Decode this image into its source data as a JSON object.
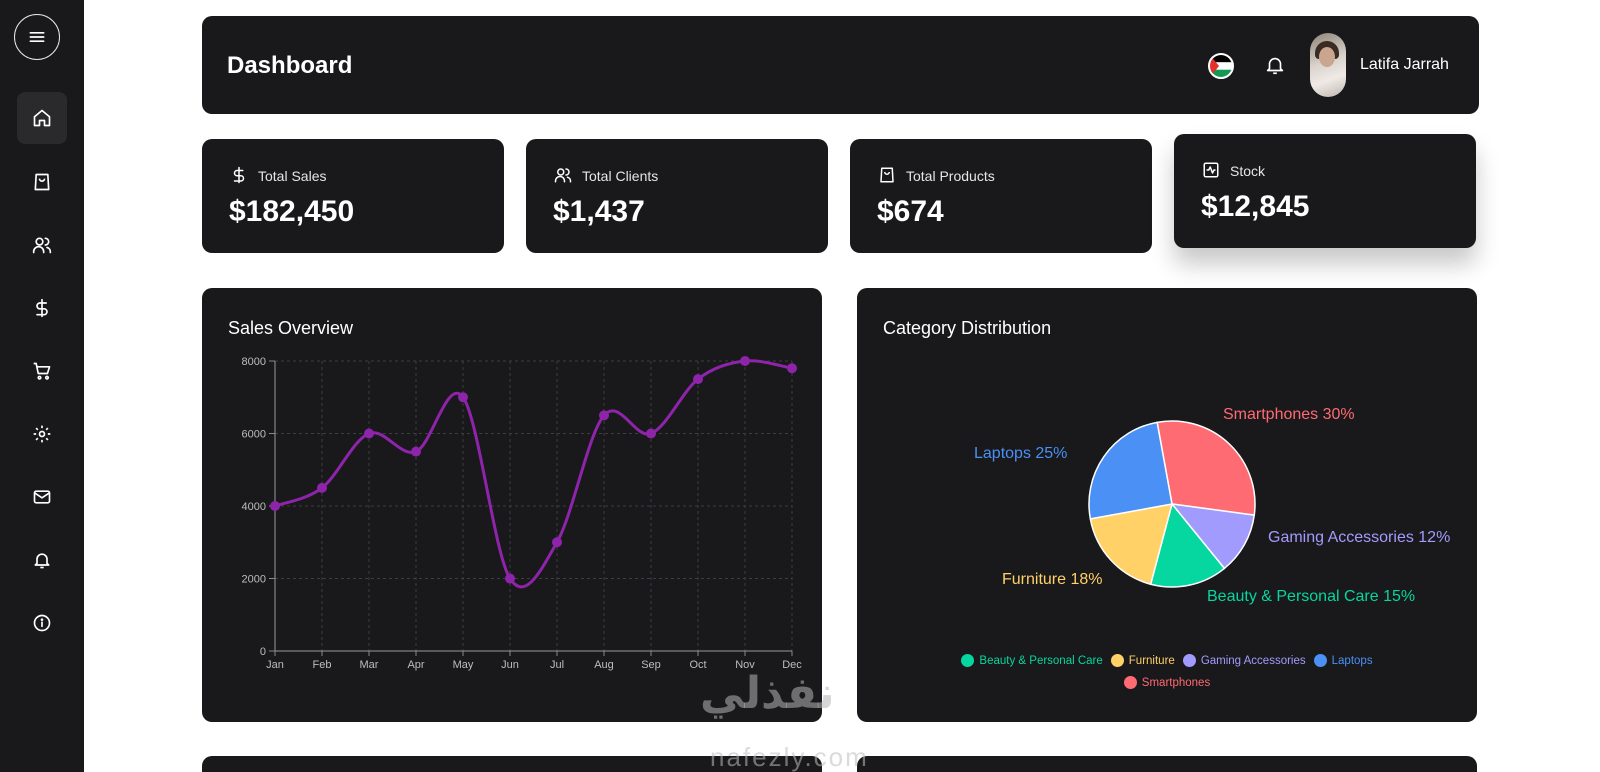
{
  "header": {
    "title": "Dashboard",
    "user_name": "Latifa Jarrah"
  },
  "sidebar": {
    "items": [
      {
        "icon": "home-icon"
      },
      {
        "icon": "shopping-bag-icon"
      },
      {
        "icon": "users-icon"
      },
      {
        "icon": "dollar-icon"
      },
      {
        "icon": "cart-icon"
      },
      {
        "icon": "settings-icon"
      },
      {
        "icon": "mail-icon"
      },
      {
        "icon": "bell-icon"
      },
      {
        "icon": "info-icon"
      }
    ]
  },
  "stats": [
    {
      "label": "Total Sales",
      "value": "$182,450",
      "icon": "dollar-icon"
    },
    {
      "label": "Total Clients",
      "value": "$1,437",
      "icon": "users-icon"
    },
    {
      "label": "Total Products",
      "value": "$674",
      "icon": "shopping-bag-icon"
    },
    {
      "label": "Stock",
      "value": "$12,845",
      "icon": "activity-icon"
    }
  ],
  "sales_overview": {
    "title": "Sales Overview"
  },
  "category_distribution": {
    "title": "Category Distribution"
  },
  "watermark": {
    "arabic": "نفذلي",
    "latin": "nafezly.com"
  },
  "colors": {
    "panel": "#19181b",
    "line": "#8e24aa",
    "smartphones": "#ff6b72",
    "laptops": "#4a90f5",
    "furniture": "#ffd166",
    "beauty": "#06d6a0",
    "gaming": "#a29bfe"
  },
  "chart_data": [
    {
      "type": "line",
      "title": "Sales Overview",
      "categories": [
        "Jan",
        "Feb",
        "Mar",
        "Apr",
        "May",
        "Jun",
        "Jul",
        "Aug",
        "Sep",
        "Oct",
        "Nov",
        "Dec"
      ],
      "values": [
        4000,
        4500,
        6000,
        5500,
        7000,
        2000,
        3000,
        6500,
        6000,
        7500,
        8000,
        7800
      ],
      "ylim": [
        0,
        8000
      ],
      "yticks": [
        0,
        2000,
        4000,
        6000,
        8000
      ],
      "grid": true
    },
    {
      "type": "pie",
      "title": "Category Distribution",
      "slices": [
        {
          "label": "Smartphones",
          "value": 30,
          "color": "#ff6b72",
          "text": "Smartphones 30%"
        },
        {
          "label": "Gaming Accessories",
          "value": 12,
          "color": "#a29bfe",
          "text": "Gaming Accessories 12%"
        },
        {
          "label": "Beauty & Personal Care",
          "value": 15,
          "color": "#06d6a0",
          "text": "Beauty & Personal Care 15%"
        },
        {
          "label": "Furniture",
          "value": 18,
          "color": "#ffd166",
          "text": "Furniture 18%"
        },
        {
          "label": "Laptops",
          "value": 25,
          "color": "#4a90f5",
          "text": "Laptops 25%"
        }
      ],
      "legend": [
        "Beauty & Personal Care",
        "Furniture",
        "Gaming Accessories",
        "Laptops",
        "Smartphones"
      ],
      "legend_position": "bottom"
    }
  ]
}
